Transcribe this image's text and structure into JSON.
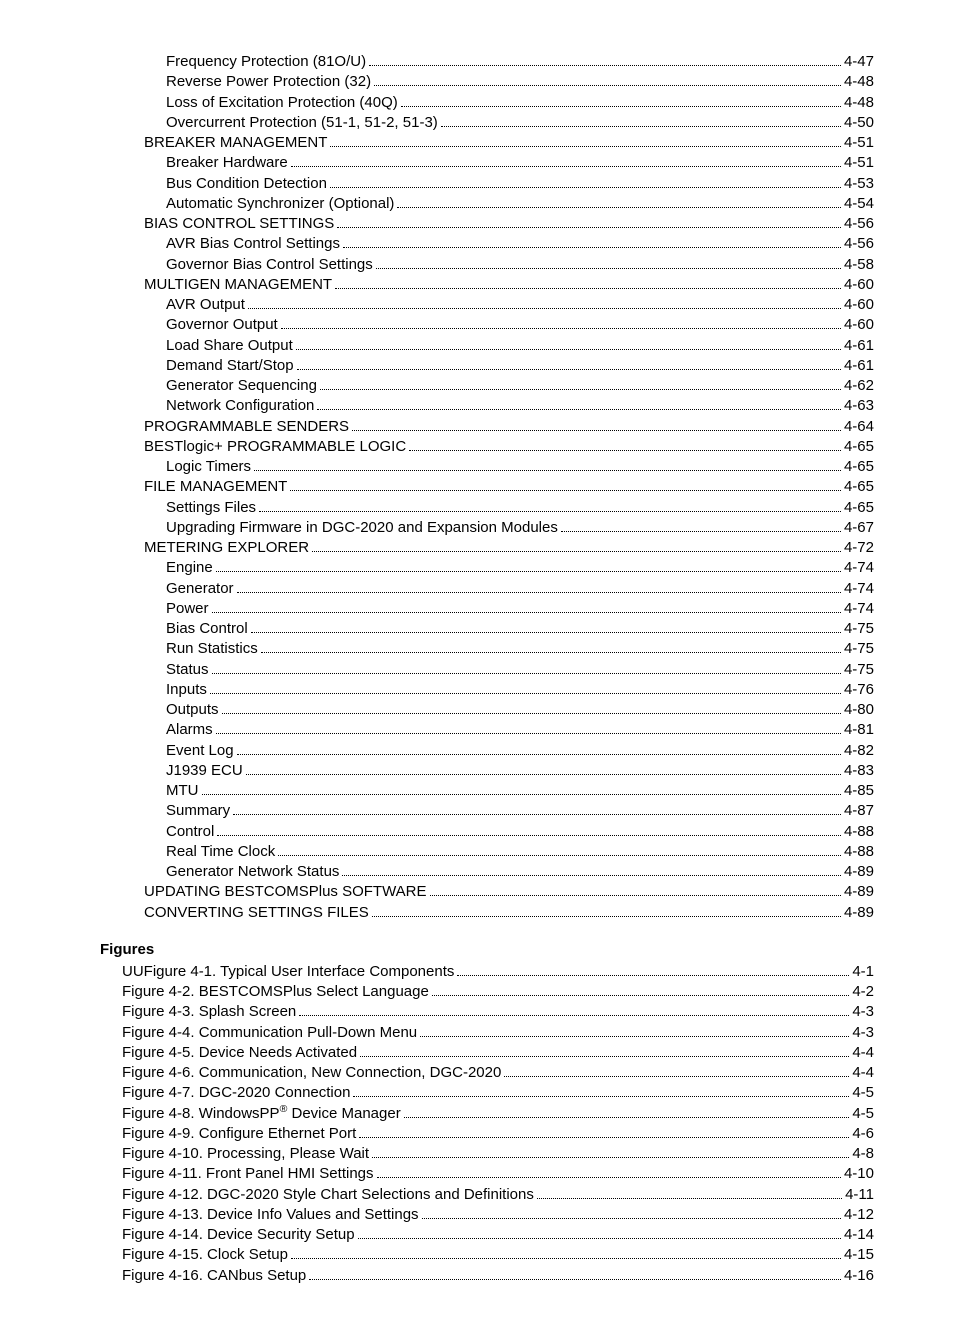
{
  "toc_main": [
    {
      "label": "Frequency Protection (81O/U)",
      "page": "4-47",
      "indent": 3
    },
    {
      "label": "Reverse Power Protection (32)",
      "page": "4-48",
      "indent": 3
    },
    {
      "label": "Loss of Excitation Protection (40Q)",
      "page": "4-48",
      "indent": 3
    },
    {
      "label": "Overcurrent Protection (51-1, 51-2, 51-3)",
      "page": "4-50",
      "indent": 3
    },
    {
      "label": "BREAKER MANAGEMENT",
      "page": "4-51",
      "indent": 2
    },
    {
      "label": "Breaker Hardware",
      "page": "4-51",
      "indent": 3
    },
    {
      "label": "Bus Condition Detection",
      "page": "4-53",
      "indent": 3
    },
    {
      "label": "Automatic Synchronizer (Optional)",
      "page": "4-54",
      "indent": 3
    },
    {
      "label": "BIAS CONTROL SETTINGS",
      "page": "4-56",
      "indent": 2
    },
    {
      "label": "AVR Bias Control Settings",
      "page": "4-56",
      "indent": 3
    },
    {
      "label": "Governor Bias Control Settings",
      "page": "4-58",
      "indent": 3
    },
    {
      "label": "MULTIGEN MANAGEMENT",
      "page": "4-60",
      "indent": 2
    },
    {
      "label": "AVR Output",
      "page": "4-60",
      "indent": 3
    },
    {
      "label": "Governor Output",
      "page": "4-60",
      "indent": 3
    },
    {
      "label": "Load Share Output",
      "page": "4-61",
      "indent": 3
    },
    {
      "label": "Demand Start/Stop",
      "page": "4-61",
      "indent": 3
    },
    {
      "label": "Generator Sequencing",
      "page": "4-62",
      "indent": 3
    },
    {
      "label": "Network Configuration",
      "page": "4-63",
      "indent": 3
    },
    {
      "label": "PROGRAMMABLE SENDERS",
      "page": "4-64",
      "indent": 2
    },
    {
      "label": "BESTlogic+ PROGRAMMABLE LOGIC",
      "page": "4-65",
      "indent": 2
    },
    {
      "label": "Logic Timers",
      "page": "4-65",
      "indent": 3
    },
    {
      "label": "FILE MANAGEMENT",
      "page": "4-65",
      "indent": 2
    },
    {
      "label": "Settings Files",
      "page": "4-65",
      "indent": 3
    },
    {
      "label": "Upgrading Firmware in DGC-2020 and Expansion Modules",
      "page": "4-67",
      "indent": 3
    },
    {
      "label": "METERING EXPLORER",
      "page": "4-72",
      "indent": 2
    },
    {
      "label": "Engine",
      "page": "4-74",
      "indent": 3
    },
    {
      "label": "Generator",
      "page": "4-74",
      "indent": 3
    },
    {
      "label": "Power",
      "page": "4-74",
      "indent": 3
    },
    {
      "label": "Bias Control",
      "page": "4-75",
      "indent": 3
    },
    {
      "label": "Run Statistics",
      "page": "4-75",
      "indent": 3
    },
    {
      "label": "Status",
      "page": "4-75",
      "indent": 3
    },
    {
      "label": "Inputs",
      "page": "4-76",
      "indent": 3
    },
    {
      "label": "Outputs",
      "page": "4-80",
      "indent": 3
    },
    {
      "label": "Alarms",
      "page": "4-81",
      "indent": 3
    },
    {
      "label": "Event Log",
      "page": "4-82",
      "indent": 3
    },
    {
      "label": "J1939 ECU",
      "page": "4-83",
      "indent": 3
    },
    {
      "label": "MTU",
      "page": "4-85",
      "indent": 3
    },
    {
      "label": "Summary",
      "page": "4-87",
      "indent": 3
    },
    {
      "label": "Control",
      "page": "4-88",
      "indent": 3
    },
    {
      "label": "Real Time Clock",
      "page": "4-88",
      "indent": 3
    },
    {
      "label": "Generator Network Status",
      "page": "4-89",
      "indent": 3
    },
    {
      "label": "UPDATING BESTCOMSPlus SOFTWARE",
      "page": "4-89",
      "indent": 2
    },
    {
      "label": "CONVERTING SETTINGS FILES",
      "page": "4-89",
      "indent": 2
    }
  ],
  "figures_heading": "Figures",
  "toc_figures": [
    {
      "label": "UUFigure 4-1. Typical User Interface Components",
      "page": "4-1",
      "indent": 1
    },
    {
      "label": "Figure 4-2. BESTCOMSPlus Select Language",
      "page": "4-2",
      "indent": 1
    },
    {
      "label": "Figure 4-3. Splash Screen",
      "page": "4-3",
      "indent": 1
    },
    {
      "label": "Figure 4-4. Communication Pull-Down Menu",
      "page": "4-3",
      "indent": 1
    },
    {
      "label": "Figure 4-5. Device Needs Activated",
      "page": "4-4",
      "indent": 1
    },
    {
      "label": "Figure 4-6. Communication, New Connection, DGC-2020",
      "page": "4-4",
      "indent": 1
    },
    {
      "label": "Figure 4-7. DGC-2020 Connection",
      "page": "4-5",
      "indent": 1
    },
    {
      "label_html": "Figure 4-8. WindowsPP<sup>®</sup> Device Manager",
      "label": "Figure 4-8. WindowsPP® Device Manager",
      "page": "4-5",
      "indent": 1
    },
    {
      "label": "Figure 4-9. Configure Ethernet Port",
      "page": "4-6",
      "indent": 1
    },
    {
      "label": "Figure 4-10. Processing, Please Wait",
      "page": "4-8",
      "indent": 1
    },
    {
      "label": "Figure 4-11. Front Panel HMI Settings",
      "page": "4-10",
      "indent": 1
    },
    {
      "label": "Figure 4-12. DGC-2020 Style Chart Selections and Definitions",
      "page": "4-11",
      "indent": 1
    },
    {
      "label": "Figure 4-13. Device Info Values and Settings",
      "page": "4-12",
      "indent": 1
    },
    {
      "label": "Figure 4-14. Device Security Setup",
      "page": "4-14",
      "indent": 1
    },
    {
      "label": "Figure 4-15. Clock Setup",
      "page": "4-15",
      "indent": 1
    },
    {
      "label": "Figure 4-16. CANbus Setup",
      "page": "4-16",
      "indent": 1
    }
  ]
}
